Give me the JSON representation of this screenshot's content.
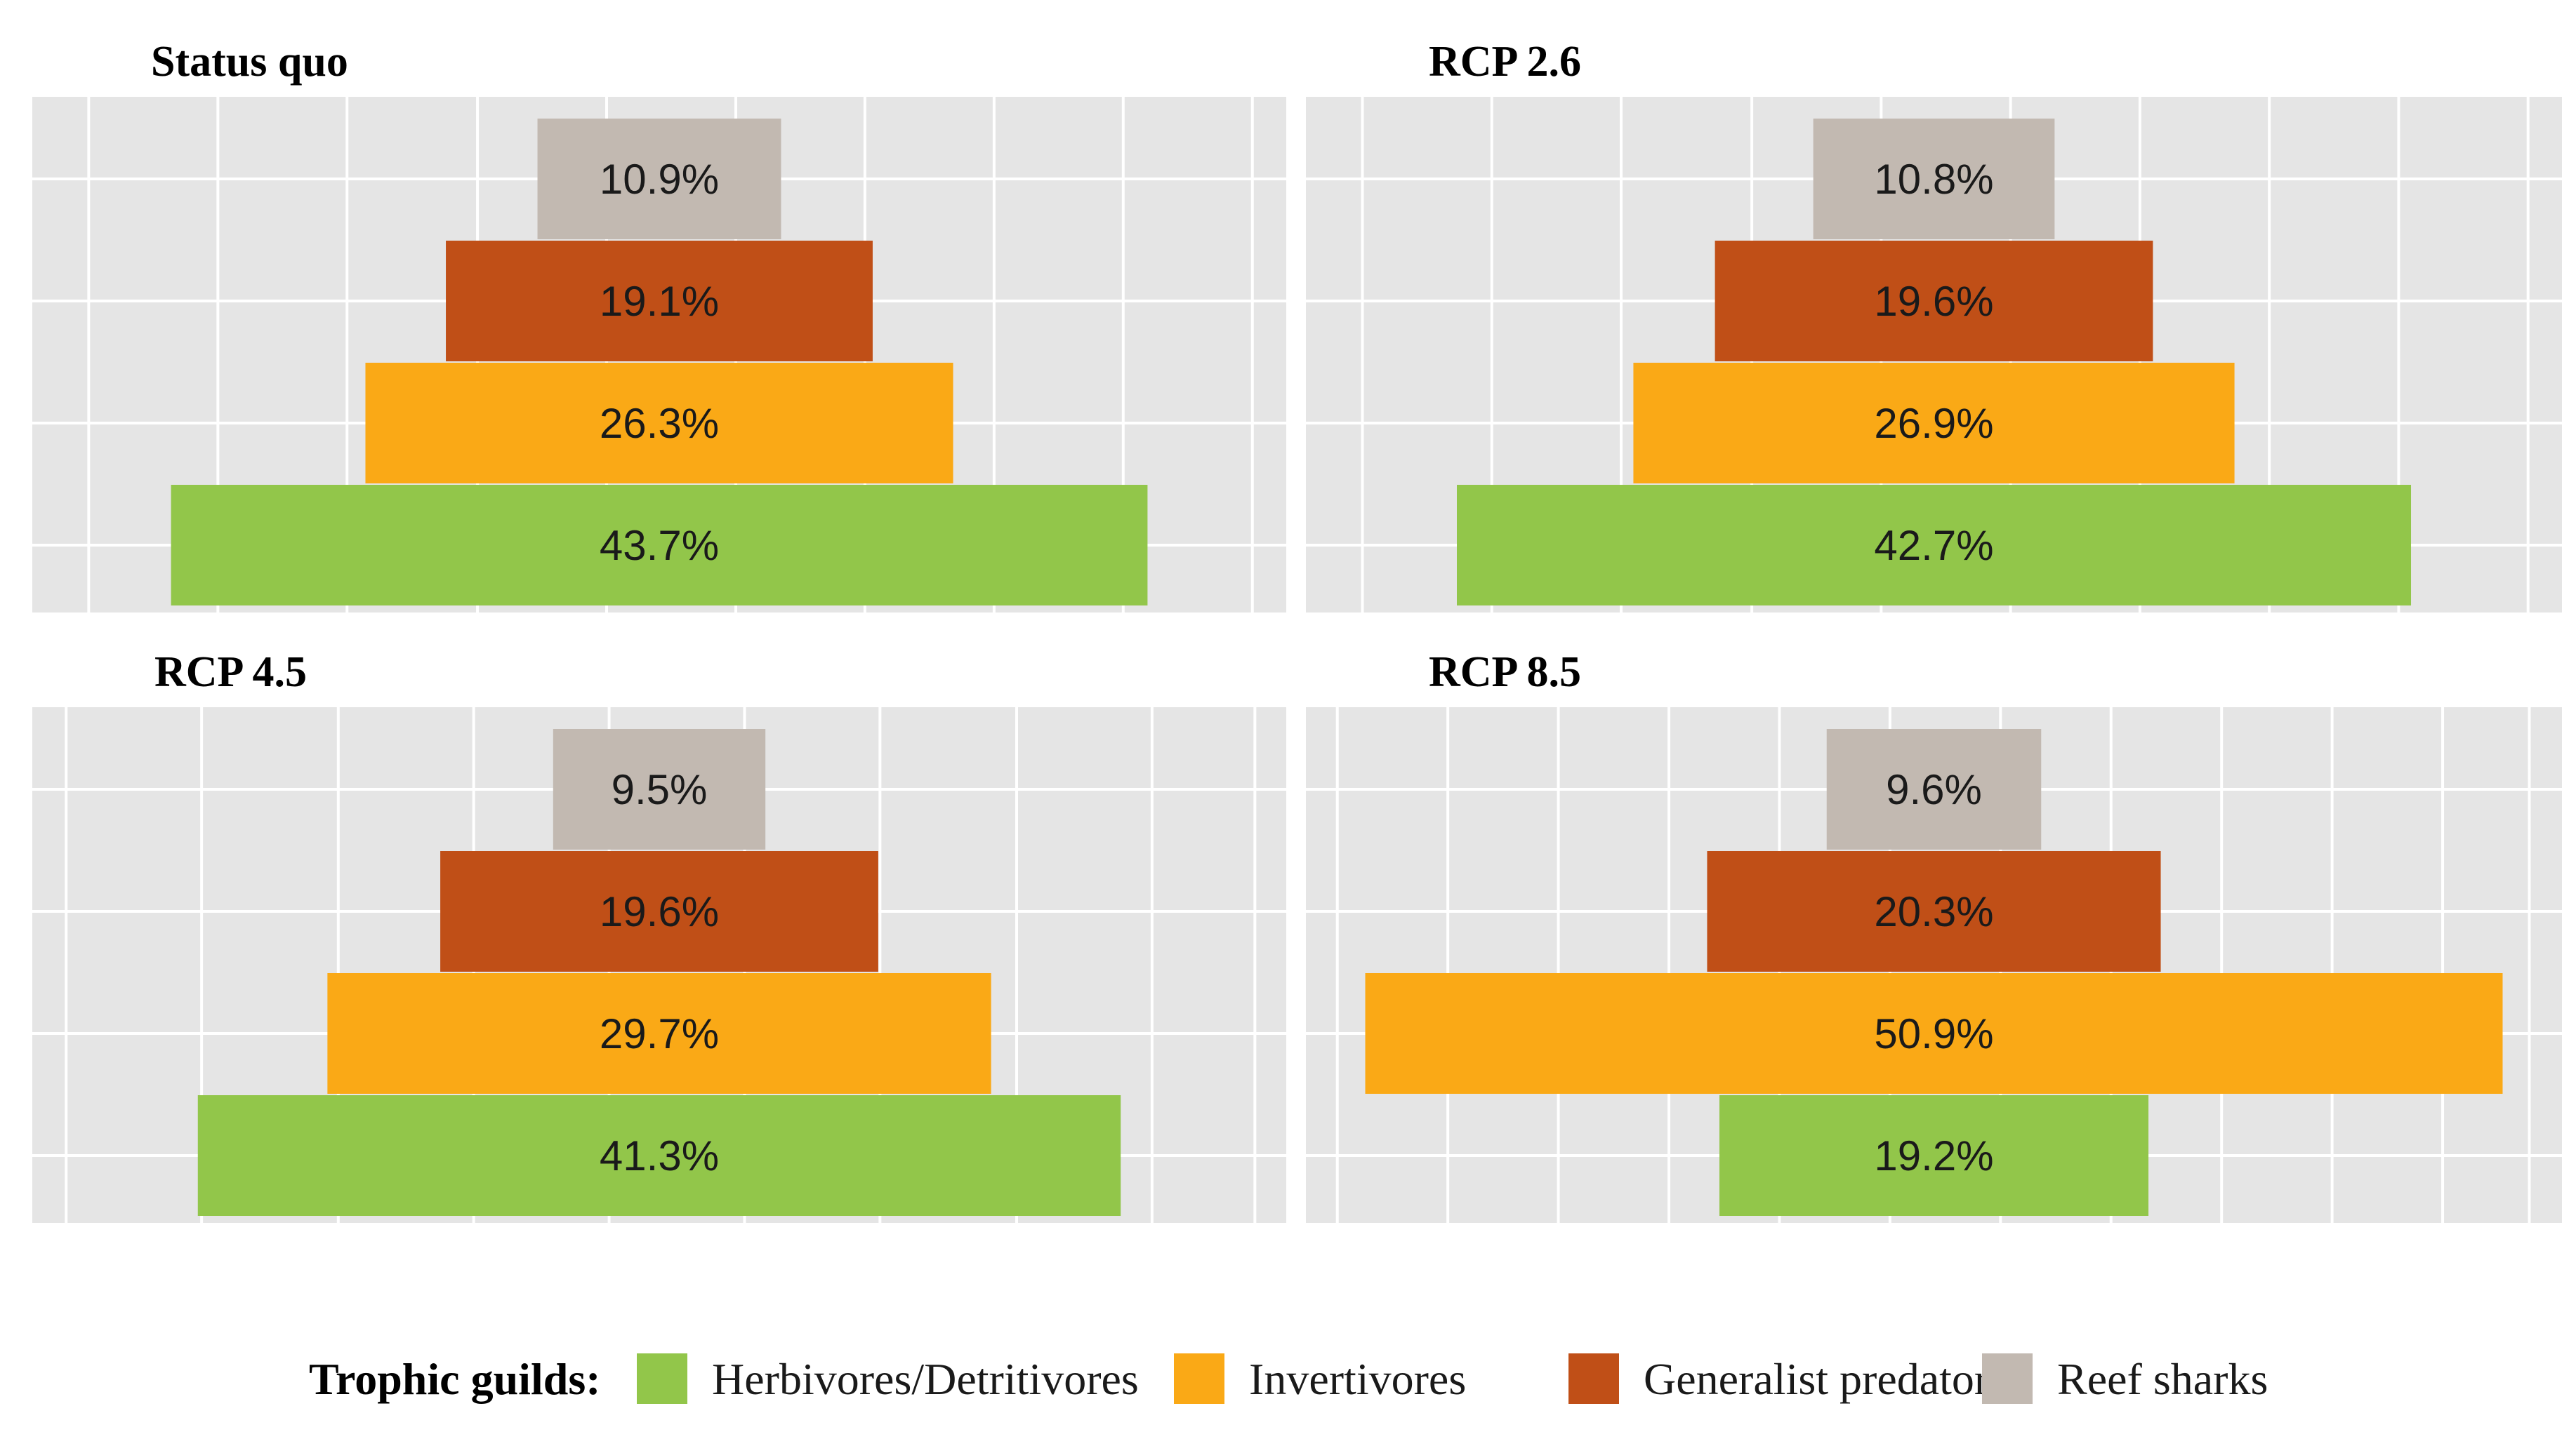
{
  "chart_data": {
    "type": "bar",
    "orientation": "horizontal",
    "layout": "centered-pyramid",
    "grid": true,
    "legend_placement": "bottom",
    "legend": {
      "title": "Trophic guilds:",
      "entries": [
        {
          "name": "Herbivores/Detritivores",
          "color": "#92C64A"
        },
        {
          "name": "Invertivores",
          "color": "#FAA916"
        },
        {
          "name": "Generalist predators",
          "color": "#C04F17"
        },
        {
          "name": "Reef sharks",
          "color": "#C2B9B1"
        }
      ]
    },
    "categories": [
      "Herbivores/Detritivores",
      "Invertivores",
      "Generalist predators",
      "Reef sharks"
    ],
    "panels": [
      {
        "title": "Status quo",
        "values": [
          43.7,
          26.3,
          19.1,
          10.9
        ],
        "labels": [
          "43.7%",
          "26.3%",
          "19.1%",
          "10.9%"
        ]
      },
      {
        "title": "RCP 2.6",
        "values": [
          42.7,
          26.9,
          19.6,
          10.8
        ],
        "labels": [
          "42.7%",
          "26.9%",
          "19.6%",
          "10.8%"
        ]
      },
      {
        "title": "RCP 4.5",
        "values": [
          41.3,
          29.7,
          19.6,
          9.5
        ],
        "labels": [
          "41.3%",
          "29.7%",
          "19.6%",
          "9.5%"
        ]
      },
      {
        "title": "RCP 8.5",
        "values": [
          19.2,
          50.9,
          20.3,
          9.6
        ],
        "labels": [
          "19.2%",
          "50.9%",
          "20.3%",
          "9.6%"
        ]
      }
    ]
  }
}
